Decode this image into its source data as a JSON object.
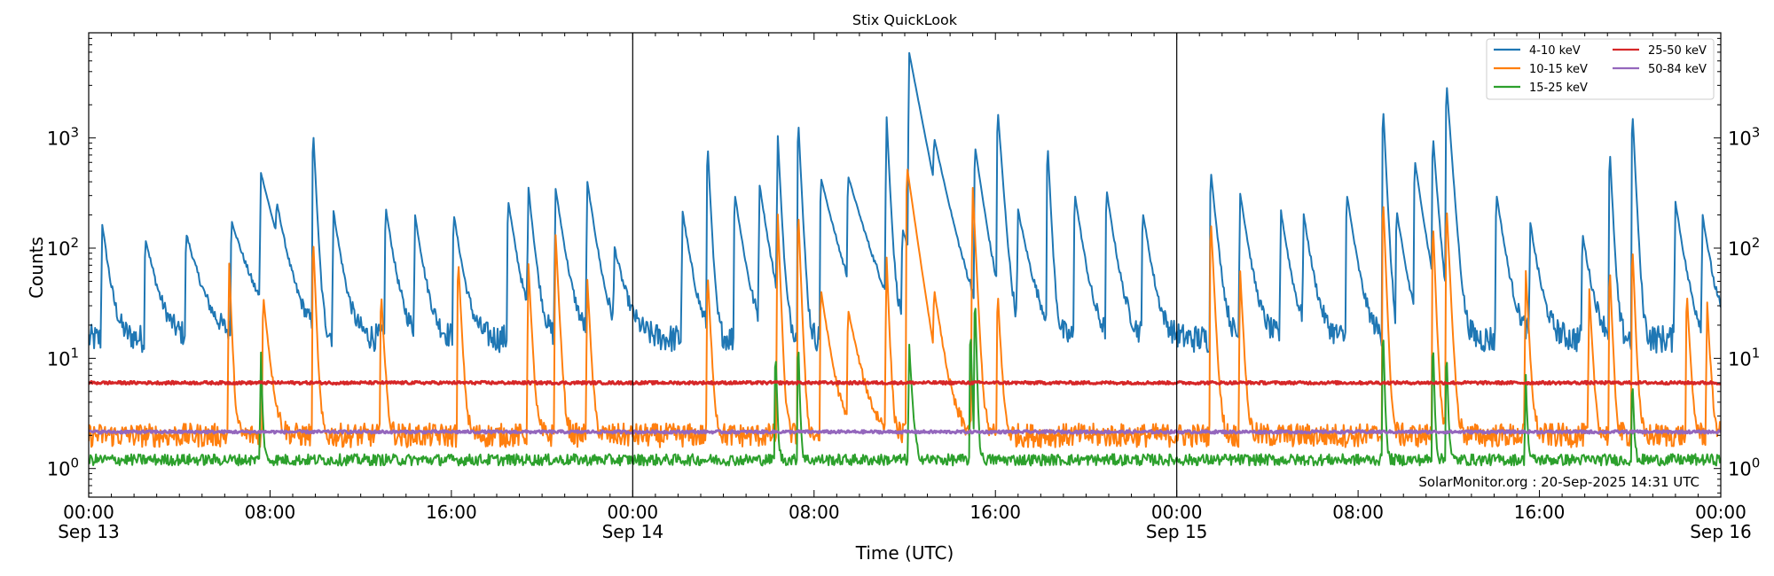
{
  "chart_data": {
    "type": "line",
    "title": "Stix QuickLook",
    "xlabel": "Time (UTC)",
    "ylabel": "Counts",
    "yscale": "log",
    "ylim": [
      0.55,
      9000
    ],
    "xlim_hours": [
      0,
      72
    ],
    "x_ticks": [
      {
        "hour": 0,
        "time": "00:00",
        "date": "Sep 13"
      },
      {
        "hour": 8,
        "time": "08:00",
        "date": ""
      },
      {
        "hour": 16,
        "time": "16:00",
        "date": ""
      },
      {
        "hour": 24,
        "time": "00:00",
        "date": "Sep 14"
      },
      {
        "hour": 32,
        "time": "08:00",
        "date": ""
      },
      {
        "hour": 40,
        "time": "16:00",
        "date": ""
      },
      {
        "hour": 48,
        "time": "00:00",
        "date": "Sep 15"
      },
      {
        "hour": 56,
        "time": "08:00",
        "date": ""
      },
      {
        "hour": 64,
        "time": "16:00",
        "date": ""
      },
      {
        "hour": 72,
        "time": "00:00",
        "date": "Sep 16"
      }
    ],
    "y_ticks": [
      {
        "value": 1,
        "base": "10",
        "exp": "0"
      },
      {
        "value": 10,
        "base": "10",
        "exp": "1"
      },
      {
        "value": 100,
        "base": "10",
        "exp": "2"
      },
      {
        "value": 1000,
        "base": "10",
        "exp": "3"
      }
    ],
    "day_boundaries_hours": [
      24,
      48
    ],
    "legend_position": "top-right",
    "annotation": "SolarMonitor.org : 20-Sep-2025 14:31 UTC",
    "series": [
      {
        "name": "4-10 keV",
        "color": "#1f77b4",
        "background": 15,
        "noise": 0.3,
        "peaks": [
          [
            0.6,
            150,
            0.25
          ],
          [
            2.5,
            110,
            0.4
          ],
          [
            4.3,
            120,
            0.5
          ],
          [
            6.3,
            160,
            0.6
          ],
          [
            7.6,
            450,
            0.5
          ],
          [
            8.3,
            130,
            0.3
          ],
          [
            9.9,
            1200,
            0.1
          ],
          [
            10.8,
            200,
            0.3
          ],
          [
            13.1,
            220,
            0.3
          ],
          [
            14.4,
            180,
            0.3
          ],
          [
            16.1,
            190,
            0.3
          ],
          [
            18.5,
            260,
            0.3
          ],
          [
            19.4,
            330,
            0.2
          ],
          [
            20.6,
            330,
            0.3
          ],
          [
            22.0,
            380,
            0.3
          ],
          [
            23.2,
            80,
            0.4
          ],
          [
            26.2,
            200,
            0.3
          ],
          [
            27.3,
            900,
            0.1
          ],
          [
            28.5,
            300,
            0.3
          ],
          [
            29.6,
            350,
            0.3
          ],
          [
            30.4,
            1000,
            0.1
          ],
          [
            31.3,
            1500,
            0.1
          ],
          [
            32.3,
            420,
            0.5
          ],
          [
            33.5,
            400,
            0.6
          ],
          [
            35.2,
            1500,
            0.1
          ],
          [
            35.9,
            120,
            0.6
          ],
          [
            36.2,
            5800,
            0.4
          ],
          [
            37.3,
            600,
            0.5
          ],
          [
            39.1,
            800,
            0.3
          ],
          [
            40.1,
            1800,
            0.15
          ],
          [
            41.0,
            200,
            0.4
          ],
          [
            42.3,
            900,
            0.1
          ],
          [
            43.5,
            300,
            0.3
          ],
          [
            44.9,
            320,
            0.3
          ],
          [
            46.5,
            200,
            0.3
          ],
          [
            49.5,
            500,
            0.2
          ],
          [
            50.8,
            300,
            0.3
          ],
          [
            52.6,
            200,
            0.3
          ],
          [
            53.6,
            180,
            0.3
          ],
          [
            55.5,
            300,
            0.3
          ],
          [
            57.1,
            2000,
            0.1
          ],
          [
            57.7,
            200,
            0.3
          ],
          [
            58.5,
            600,
            0.3
          ],
          [
            59.3,
            1000,
            0.15
          ],
          [
            59.9,
            3200,
            0.15
          ],
          [
            62.1,
            300,
            0.3
          ],
          [
            63.6,
            150,
            0.3
          ],
          [
            65.9,
            120,
            0.3
          ],
          [
            67.1,
            800,
            0.1
          ],
          [
            68.1,
            1800,
            0.1
          ],
          [
            70.0,
            250,
            0.3
          ],
          [
            71.2,
            180,
            0.3
          ]
        ]
      },
      {
        "name": "10-15 keV",
        "color": "#ff7f0e",
        "background": 2,
        "noise": 0.25,
        "peaks": [
          [
            6.2,
            70,
            0.08
          ],
          [
            7.7,
            35,
            0.2
          ],
          [
            9.9,
            130,
            0.08
          ],
          [
            12.9,
            40,
            0.1
          ],
          [
            16.3,
            80,
            0.1
          ],
          [
            19.4,
            70,
            0.1
          ],
          [
            20.6,
            130,
            0.1
          ],
          [
            22.0,
            50,
            0.1
          ],
          [
            27.3,
            60,
            0.1
          ],
          [
            30.4,
            200,
            0.08
          ],
          [
            31.3,
            230,
            0.08
          ],
          [
            32.3,
            40,
            0.3
          ],
          [
            33.5,
            25,
            0.4
          ],
          [
            35.2,
            80,
            0.08
          ],
          [
            36.1,
            550,
            0.3
          ],
          [
            37.3,
            30,
            0.3
          ],
          [
            39.0,
            350,
            0.1
          ],
          [
            40.1,
            40,
            0.1
          ],
          [
            49.5,
            190,
            0.1
          ],
          [
            50.8,
            60,
            0.1
          ],
          [
            57.1,
            300,
            0.08
          ],
          [
            59.3,
            180,
            0.08
          ],
          [
            59.9,
            250,
            0.1
          ],
          [
            63.4,
            60,
            0.1
          ],
          [
            66.2,
            40,
            0.1
          ],
          [
            67.1,
            70,
            0.08
          ],
          [
            68.1,
            110,
            0.08
          ],
          [
            70.5,
            40,
            0.1
          ],
          [
            71.4,
            30,
            0.1
          ]
        ]
      },
      {
        "name": "15-25 keV",
        "color": "#2ca02c",
        "background": 1.2,
        "noise": 0.12,
        "peaks": [
          [
            7.6,
            10,
            0.05
          ],
          [
            30.3,
            12,
            0.05
          ],
          [
            31.3,
            15,
            0.05
          ],
          [
            36.2,
            12,
            0.1
          ],
          [
            38.9,
            20,
            0.05
          ],
          [
            39.1,
            40,
            0.05
          ],
          [
            57.1,
            20,
            0.05
          ],
          [
            59.3,
            15,
            0.05
          ],
          [
            59.9,
            12,
            0.05
          ],
          [
            63.4,
            6,
            0.05
          ],
          [
            68.1,
            6,
            0.05
          ]
        ]
      },
      {
        "name": "25-50 keV",
        "color": "#d62728",
        "background": 6,
        "noise": 0.03,
        "peaks": []
      },
      {
        "name": "50-84 keV",
        "color": "#9467bd",
        "background": 2.15,
        "noise": 0.03,
        "peaks": []
      }
    ]
  }
}
